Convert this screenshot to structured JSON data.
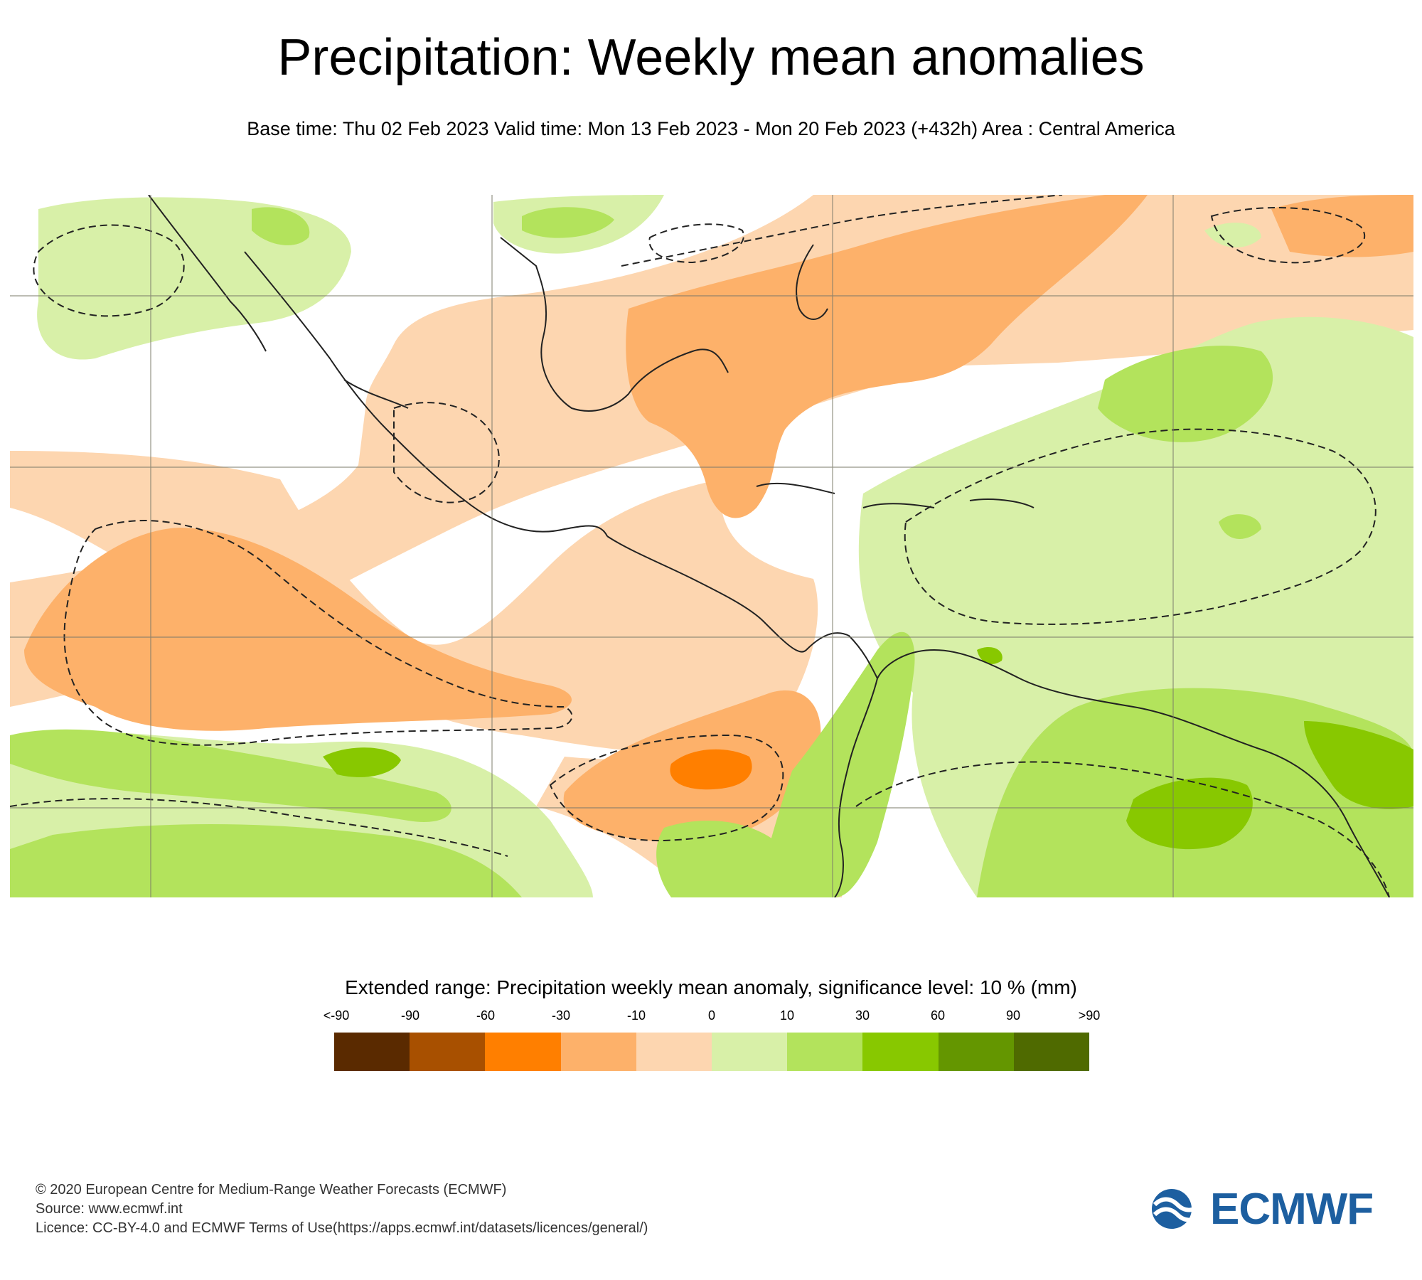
{
  "title": "Precipitation: Weekly mean anomalies",
  "subtitle": "Base time: Thu 02 Feb 2023 Valid time: Mon 13 Feb 2023 - Mon 20 Feb 2023 (+432h) Area : Central America",
  "legend": {
    "title": "Extended range: Precipitation weekly mean anomaly, significance level: 10 % (mm)",
    "ticks": [
      "<-90",
      "-90",
      "-60",
      "-30",
      "-10",
      "0",
      "10",
      "30",
      "60",
      "90",
      ">90"
    ],
    "colors": [
      "#5a2a00",
      "#a85000",
      "#ff7f00",
      "#fdb16a",
      "#fdd6b0",
      "#d8f0a8",
      "#b3e35c",
      "#88c800",
      "#649600",
      "#4f6a00"
    ]
  },
  "footer": {
    "copyright": "© 2020 European Centre for Medium-Range Weather Forecasts (ECMWF)",
    "source": "Source: www.ecmwf.int",
    "licence": "Licence: CC-BY-4.0 and ECMWF Terms of Use(https://apps.ecmwf.int/datasets/licences/general/)"
  },
  "logo": {
    "text": "ECMWF",
    "color": "#1d5fa0"
  }
}
